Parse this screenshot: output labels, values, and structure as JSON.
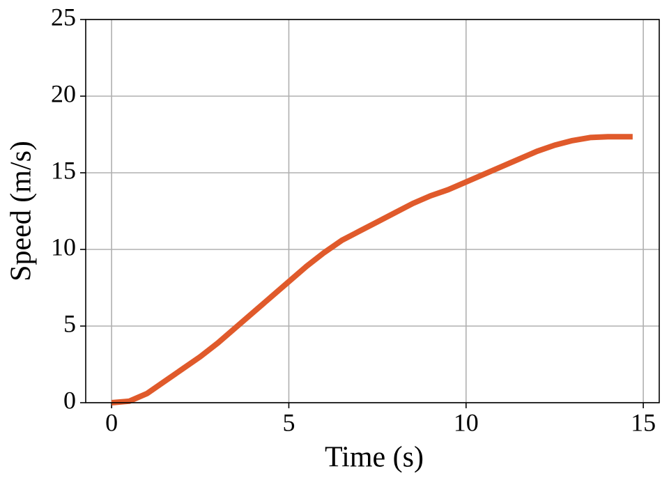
{
  "chart_data": {
    "type": "line",
    "xlabel": "Time (s)",
    "ylabel": "Speed (m/s)",
    "x": [
      0,
      0.5,
      1,
      1.5,
      2,
      2.5,
      3,
      3.5,
      4,
      4.5,
      5,
      5.5,
      6,
      6.5,
      7,
      7.5,
      8,
      8.5,
      9,
      9.5,
      10,
      10.5,
      11,
      11.5,
      12,
      12.5,
      13,
      13.5,
      14,
      14.7
    ],
    "values": [
      0,
      0.1,
      0.6,
      1.4,
      2.2,
      3.0,
      3.9,
      4.9,
      5.9,
      6.9,
      7.9,
      8.9,
      9.8,
      10.6,
      11.2,
      11.8,
      12.4,
      13.0,
      13.5,
      13.9,
      14.4,
      14.9,
      15.4,
      15.9,
      16.4,
      16.8,
      17.1,
      17.3,
      17.35,
      17.35
    ],
    "color": "#e05a2b",
    "xlim": [
      -0.73,
      15.45
    ],
    "xticks": [
      0,
      5,
      10,
      15
    ],
    "ylim": [
      0,
      25
    ],
    "yticks": [
      0,
      5,
      10,
      15,
      20,
      25
    ],
    "grid": true
  }
}
